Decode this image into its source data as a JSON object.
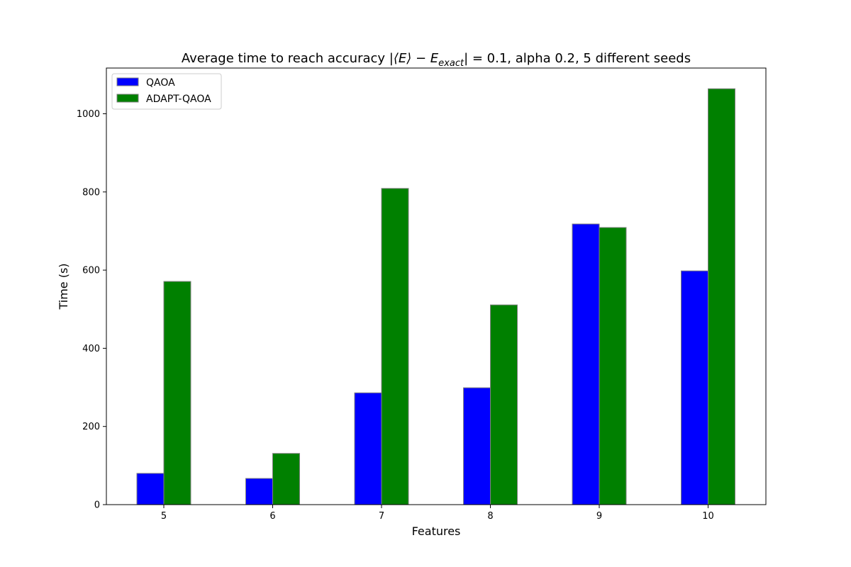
{
  "chart_data": {
    "type": "bar",
    "title_text": "Average time to reach accuracy ",
    "title_math": "|⟨E⟩ − E",
    "title_math_sub": "exact",
    "title_math_end": "| = 0.1",
    "title_suffix": ", alpha 0.2, 5 different seeds",
    "xlabel": "Features",
    "ylabel": "Time (s)",
    "categories": [
      "5",
      "6",
      "7",
      "8",
      "9",
      "10"
    ],
    "series": [
      {
        "name": "QAOA",
        "color": "#0000ff",
        "values": [
          80,
          67,
          286,
          299,
          718,
          598
        ]
      },
      {
        "name": "ADAPT-QAOA",
        "color": "#008000",
        "values": [
          571,
          131,
          809,
          511,
          709,
          1064
        ]
      }
    ],
    "yticks": [
      0,
      200,
      400,
      600,
      800,
      1000
    ],
    "ylim": [
      0,
      1117
    ],
    "legend_position": "upper left",
    "grid": false,
    "bar_edge_color": "#808080"
  }
}
